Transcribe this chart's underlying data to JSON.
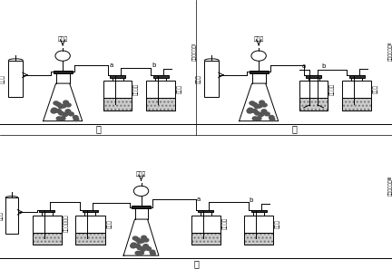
{
  "lc": "#000000",
  "bg": "#ffffff",
  "label_xiliusuan": "稀硫酸",
  "label_kongqiguan": "空气罐",
  "label_纯碱样品": "纯碱样品",
  "label_浓硫酸": "浓硫酸",
  "label_氢氧化钠溶液": "氢氧化钠溶液",
  "label_氢氧化钠溶液I": "氢氧化钠溶液Ⅰ",
  "label_氢氧化钠溶液II": "氢氧化钠溶液Ⅱ",
  "label_氢氧化钠溶液III": "氢氧化钠溶液Ⅲ",
  "label_a": "a",
  "label_b": "b",
  "title_jia": "甲",
  "title_yi": "乙",
  "title_bing": "丙"
}
